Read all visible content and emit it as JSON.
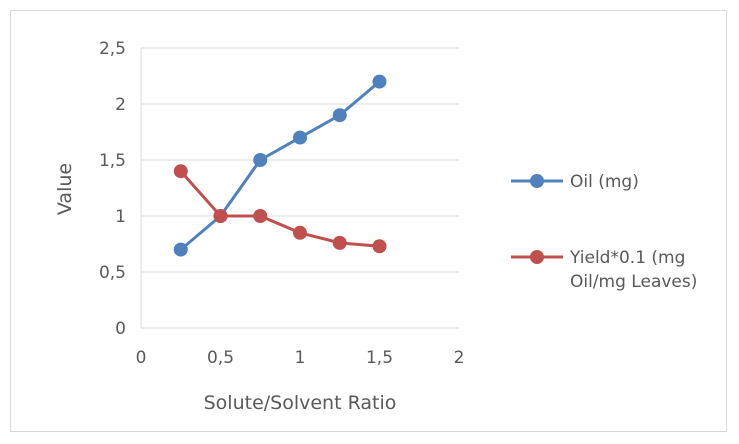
{
  "chart_data": {
    "type": "scatter",
    "title": "",
    "xlabel": "Solute/Solvent Ratio",
    "ylabel": "Value",
    "xlim": [
      0,
      2
    ],
    "ylim": [
      0,
      2.5
    ],
    "x_ticks": [
      "0",
      "0,5",
      "1",
      "1,5",
      "2"
    ],
    "y_ticks": [
      "0",
      "0,5",
      "1",
      "1,5",
      "2",
      "2,5"
    ],
    "grid": true,
    "legend_position": "right",
    "series": [
      {
        "name": "Oil (mg)",
        "color": "#4f81bd",
        "x": [
          0.25,
          0.5,
          0.75,
          1.0,
          1.25,
          1.5
        ],
        "y": [
          0.7,
          1.0,
          1.5,
          1.7,
          1.9,
          2.2
        ]
      },
      {
        "name": "Yield*0.1 (mg Oil/mg Leaves)",
        "name_lines": [
          "Yield*0.1 (mg",
          "Oil/mg Leaves)"
        ],
        "color": "#c0504d",
        "x": [
          0.25,
          0.5,
          0.75,
          1.0,
          1.25,
          1.5
        ],
        "y": [
          1.4,
          1.0,
          1.0,
          0.85,
          0.76,
          0.73
        ]
      }
    ]
  }
}
